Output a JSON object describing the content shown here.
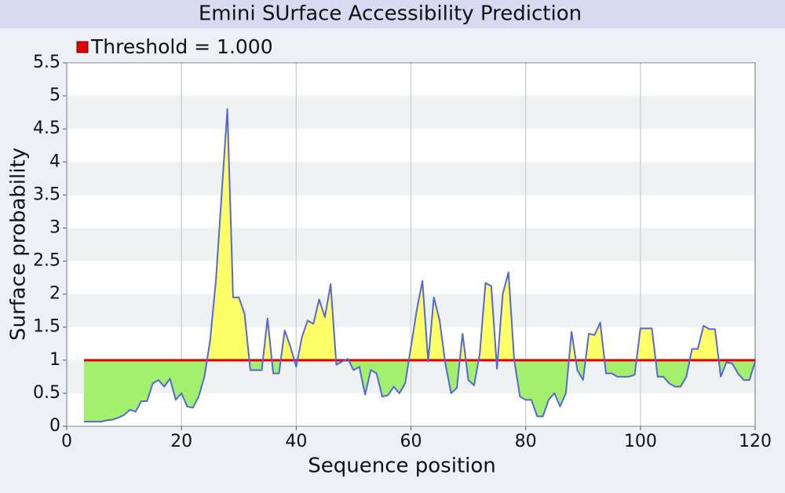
{
  "chart_data": {
    "type": "line",
    "title": "Emini SUrface Accessibility Prediction",
    "xlabel": "Sequence position",
    "ylabel": "Surface probability",
    "threshold": {
      "label": "Threshold = 1.000",
      "value": 1,
      "color": "#e00000"
    },
    "line_color": "#5468d8",
    "above_color": "#ffff66",
    "below_color": "#a2f06e",
    "x": [
      3,
      4,
      5,
      6,
      7,
      8,
      9,
      10,
      11,
      12,
      13,
      14,
      15,
      16,
      17,
      18,
      19,
      20,
      21,
      22,
      23,
      24,
      25,
      26,
      27,
      28,
      29,
      30,
      31,
      32,
      33,
      34,
      35,
      36,
      37,
      38,
      39,
      40,
      41,
      42,
      43,
      44,
      45,
      46,
      47,
      48,
      49,
      50,
      51,
      52,
      53,
      54,
      55,
      56,
      57,
      58,
      59,
      60,
      61,
      62,
      63,
      64,
      65,
      66,
      67,
      68,
      69,
      70,
      71,
      72,
      73,
      74,
      75,
      76,
      77,
      78,
      79,
      80,
      81,
      82,
      83,
      84,
      85,
      86,
      87,
      88,
      89,
      90,
      91,
      92,
      93,
      94,
      95,
      96,
      97,
      98,
      99,
      100,
      101,
      102,
      103,
      104,
      105,
      106,
      107,
      108,
      109,
      110,
      111,
      112,
      113,
      114,
      115,
      116,
      117,
      118,
      119,
      120
    ],
    "values": [
      0.07,
      0.07,
      0.07,
      0.07,
      0.09,
      0.1,
      0.13,
      0.17,
      0.25,
      0.22,
      0.38,
      0.38,
      0.65,
      0.7,
      0.6,
      0.72,
      0.4,
      0.5,
      0.3,
      0.28,
      0.45,
      0.75,
      1.3,
      2.2,
      3.5,
      4.8,
      1.95,
      1.95,
      1.7,
      0.85,
      0.85,
      0.85,
      1.63,
      0.8,
      0.8,
      1.45,
      1.2,
      0.9,
      1.35,
      1.6,
      1.55,
      1.92,
      1.65,
      2.15,
      0.93,
      0.98,
      1.02,
      0.85,
      0.9,
      0.48,
      0.85,
      0.8,
      0.45,
      0.47,
      0.6,
      0.5,
      0.65,
      1.2,
      1.75,
      2.2,
      0.98,
      1.95,
      1.6,
      0.95,
      0.5,
      0.58,
      1.4,
      0.7,
      0.62,
      1.1,
      2.17,
      2.12,
      0.87,
      2.0,
      2.33,
      1.0,
      0.45,
      0.4,
      0.4,
      0.15,
      0.15,
      0.4,
      0.5,
      0.3,
      0.5,
      1.43,
      0.85,
      0.7,
      1.4,
      1.38,
      1.57,
      0.8,
      0.8,
      0.75,
      0.75,
      0.75,
      0.78,
      1.48,
      1.48,
      1.48,
      0.75,
      0.75,
      0.65,
      0.6,
      0.6,
      0.75,
      1.17,
      1.17,
      1.52,
      1.47,
      1.47,
      0.75,
      0.97,
      0.95,
      0.8,
      0.7,
      0.7,
      0.98
    ],
    "xlim": [
      0,
      120
    ],
    "xticks": [
      0,
      20,
      40,
      60,
      80,
      100,
      120
    ],
    "ylim": [
      0,
      5.5
    ],
    "yticks": [
      0,
      0.5,
      1,
      1.5,
      2,
      2.5,
      3,
      3.5,
      4,
      4.5,
      5,
      5.5
    ],
    "grid": true
  }
}
